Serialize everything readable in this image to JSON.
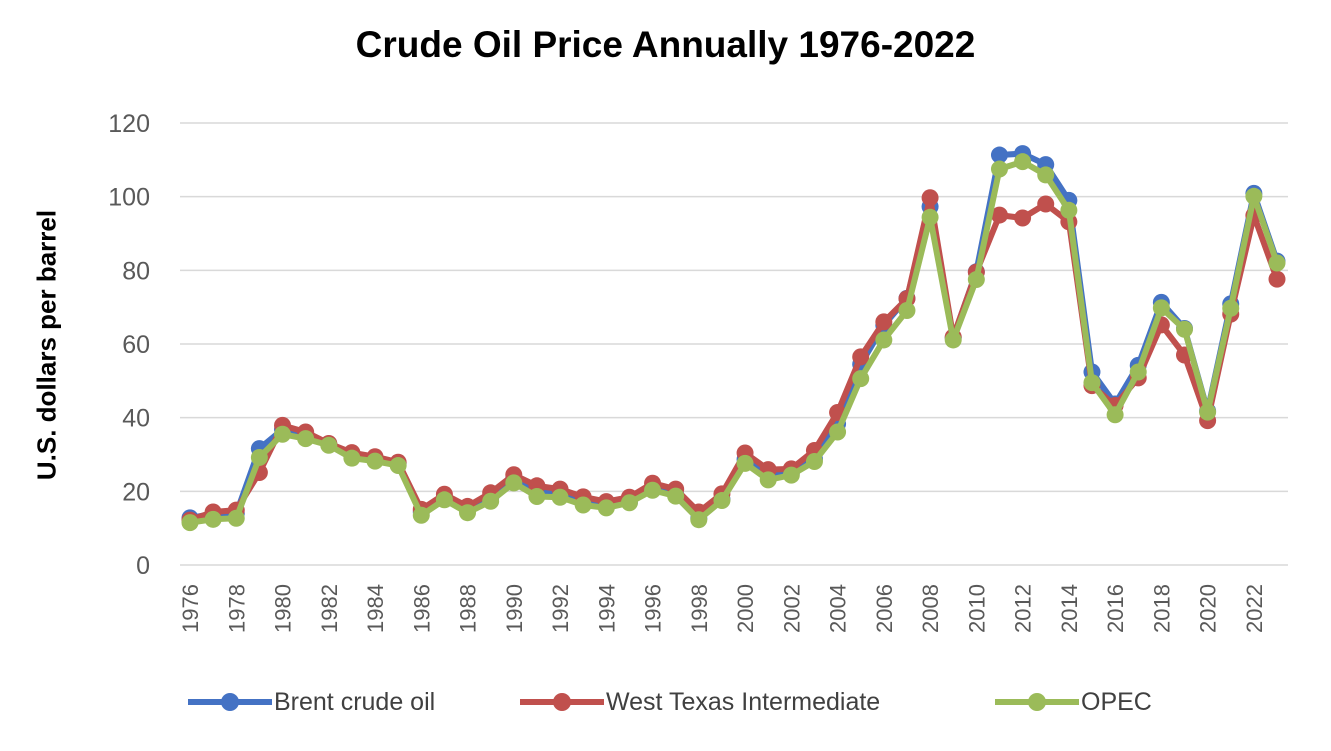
{
  "chart_data": {
    "type": "line",
    "title": "Crude Oil Price Annually 1976-2022",
    "xlabel": "",
    "ylabel": "U.S. dollars per barrel",
    "ylim": [
      0,
      120
    ],
    "yticks": [
      0,
      20,
      40,
      60,
      80,
      100,
      120
    ],
    "grid": true,
    "legend_position": "bottom",
    "x": [
      1976,
      1977,
      1978,
      1979,
      1980,
      1981,
      1982,
      1983,
      1984,
      1985,
      1986,
      1987,
      1988,
      1989,
      1990,
      1991,
      1992,
      1993,
      1994,
      1995,
      1996,
      1997,
      1998,
      1999,
      2000,
      2001,
      2002,
      2003,
      2004,
      2005,
      2006,
      2007,
      2008,
      2009,
      2010,
      2011,
      2012,
      2013,
      2014,
      2015,
      2016,
      2017,
      2018,
      2019,
      2020,
      2021,
      2022,
      2023
    ],
    "x_tick_labels": [
      "1976",
      "1978",
      "1980",
      "1982",
      "1984",
      "1986",
      "1988",
      "1990",
      "1992",
      "1994",
      "1996",
      "1998",
      "2000",
      "2002",
      "2004",
      "2006",
      "2008",
      "2010",
      "2012",
      "2014",
      "2016",
      "2018",
      "2020",
      "2022"
    ],
    "series": [
      {
        "name": "Brent crude oil",
        "color": "#4472C4",
        "values": [
          12.8,
          13.9,
          14.0,
          31.6,
          36.8,
          35.9,
          32.9,
          29.6,
          28.8,
          27.6,
          14.4,
          18.4,
          14.9,
          18.2,
          23.7,
          20.0,
          19.3,
          17.0,
          15.8,
          17.0,
          20.6,
          19.1,
          12.7,
          17.9,
          28.7,
          24.5,
          25.0,
          28.8,
          38.3,
          54.5,
          65.1,
          72.4,
          97.3,
          61.7,
          79.6,
          111.3,
          111.7,
          108.7,
          99.0,
          52.4,
          43.7,
          54.2,
          71.3,
          64.2,
          41.8,
          70.9,
          100.9,
          82.5
        ]
      },
      {
        "name": "West Texas Intermediate",
        "color": "#C0504D",
        "values": [
          12.2,
          14.4,
          14.9,
          25.1,
          37.9,
          36.1,
          33.0,
          30.5,
          29.4,
          27.9,
          15.1,
          19.2,
          15.9,
          19.6,
          24.5,
          21.5,
          20.6,
          18.5,
          17.2,
          18.4,
          22.2,
          20.6,
          14.4,
          19.3,
          30.4,
          25.9,
          26.1,
          31.1,
          41.4,
          56.5,
          66.0,
          72.3,
          99.7,
          61.9,
          79.5,
          95.0,
          94.2,
          98.0,
          93.2,
          48.7,
          43.3,
          50.8,
          65.2,
          57.0,
          39.2,
          68.1,
          94.9,
          77.6
        ]
      },
      {
        "name": "OPEC",
        "color": "#9BBB59",
        "values": [
          11.5,
          12.4,
          12.7,
          29.2,
          35.5,
          34.3,
          32.5,
          29.0,
          28.2,
          27.0,
          13.5,
          17.7,
          14.2,
          17.3,
          22.3,
          18.6,
          18.4,
          16.3,
          15.5,
          16.9,
          20.3,
          18.7,
          12.3,
          17.5,
          27.6,
          23.1,
          24.4,
          28.1,
          36.1,
          50.6,
          61.1,
          69.1,
          94.4,
          61.1,
          77.5,
          107.5,
          109.5,
          105.9,
          96.3,
          49.5,
          40.8,
          52.4,
          69.8,
          64.0,
          41.5,
          69.7,
          100.1,
          82.0
        ]
      }
    ]
  }
}
